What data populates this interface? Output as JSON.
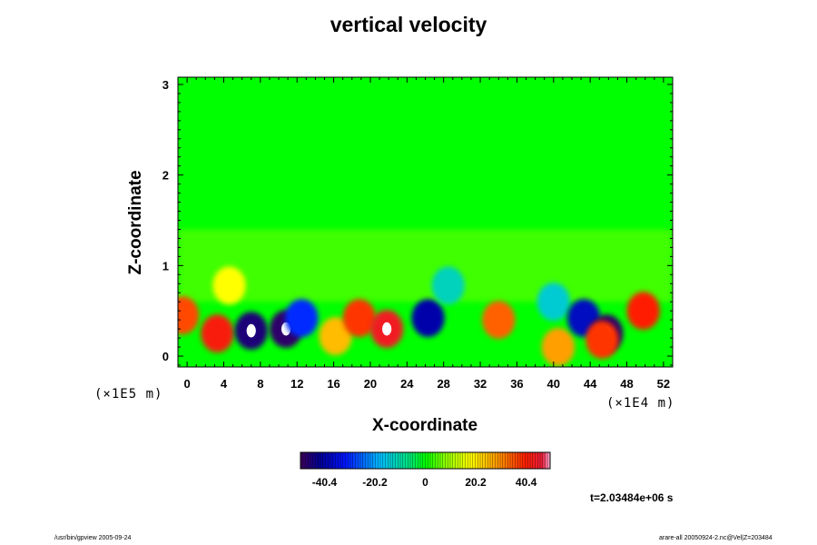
{
  "chart_data": {
    "type": "heatmap",
    "title": "vertical velocity",
    "xlabel": "X-coordinate",
    "ylabel": "Z-coordinate",
    "x_unit": "(×1E4 m)",
    "z_unit": "(×1E5 m)",
    "xlim": [
      -1,
      53
    ],
    "ylim": [
      -0.12,
      3.08
    ],
    "x_ticks": [
      0,
      4,
      8,
      12,
      16,
      20,
      24,
      28,
      32,
      36,
      40,
      44,
      48,
      52
    ],
    "x_tick_labels": [
      "0",
      "4",
      "8",
      "12",
      "16",
      "20",
      "24",
      "28",
      "32",
      "36",
      "40",
      "44",
      "48",
      "52"
    ],
    "y_ticks": [
      0,
      1,
      2,
      3
    ],
    "y_tick_labels": [
      "0",
      "1",
      "2",
      "3"
    ],
    "colorbar": {
      "range": [
        -50,
        50
      ],
      "ticks": [
        -40.4,
        -20.2,
        0,
        20.2,
        40.4
      ],
      "tick_labels": [
        "-40.4",
        "-20.2",
        "0",
        "20.2",
        "40.4"
      ]
    },
    "cells": [
      {
        "x": -0.5,
        "z": 0.45,
        "value": 36
      },
      {
        "x": 3.3,
        "z": 0.25,
        "value": 42
      },
      {
        "x": 4.6,
        "z": 0.78,
        "value": 18
      },
      {
        "x": 7.0,
        "z": 0.28,
        "value": -46
      },
      {
        "x": 10.8,
        "z": 0.3,
        "value": -48
      },
      {
        "x": 12.5,
        "z": 0.42,
        "value": -30
      },
      {
        "x": 16.2,
        "z": 0.22,
        "value": 25
      },
      {
        "x": 18.8,
        "z": 0.42,
        "value": 38
      },
      {
        "x": 21.8,
        "z": 0.3,
        "value": 44
      },
      {
        "x": 26.3,
        "z": 0.42,
        "value": -40
      },
      {
        "x": 28.5,
        "z": 0.78,
        "value": -12
      },
      {
        "x": 34.0,
        "z": 0.4,
        "value": 34
      },
      {
        "x": 40.0,
        "z": 0.6,
        "value": -14
      },
      {
        "x": 40.5,
        "z": 0.1,
        "value": 28
      },
      {
        "x": 43.3,
        "z": 0.42,
        "value": -38
      },
      {
        "x": 45.8,
        "z": 0.25,
        "value": -48
      },
      {
        "x": 45.3,
        "z": 0.18,
        "value": 38
      },
      {
        "x": 49.8,
        "z": 0.5,
        "value": 40
      }
    ]
  },
  "time_label": "t=2.03484e+06 s",
  "footer": {
    "left": "/usr/bin/gpview 2005-09-24",
    "right": "arare-all 20050924-2.nc@Vel|Z=203484"
  }
}
